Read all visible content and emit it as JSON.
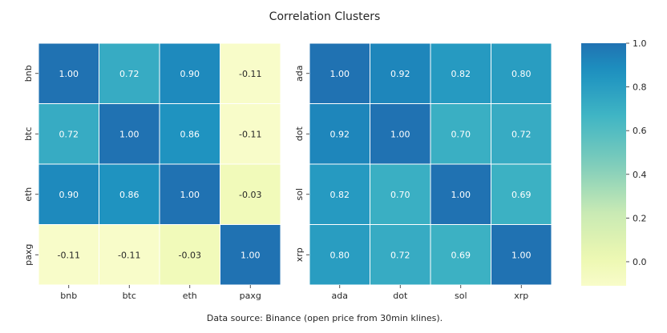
{
  "chart_data": {
    "type": "heatmap",
    "title": "Correlation Clusters",
    "footnote": "Data source: Binance (open price from 30min klines).",
    "colormap": "YlGnBu",
    "vmin": -0.11,
    "vmax": 1.0,
    "colorbar_ticks": [
      "0.0",
      "0.2",
      "0.4",
      "0.6",
      "0.8",
      "1.0"
    ],
    "colorbar_tick_values": [
      0.0,
      0.2,
      0.4,
      0.6,
      0.8,
      1.0
    ],
    "panels": [
      {
        "labels": [
          "bnb",
          "btc",
          "eth",
          "paxg"
        ],
        "values": [
          [
            "1.00",
            "0.72",
            "0.90",
            "-0.11"
          ],
          [
            "0.72",
            "1.00",
            "0.86",
            "-0.11"
          ],
          [
            "0.90",
            "0.86",
            "1.00",
            "-0.03"
          ],
          [
            "-0.11",
            "-0.11",
            "-0.03",
            "1.00"
          ]
        ]
      },
      {
        "labels": [
          "ada",
          "dot",
          "sol",
          "xrp"
        ],
        "values": [
          [
            "1.00",
            "0.92",
            "0.82",
            "0.80"
          ],
          [
            "0.92",
            "1.00",
            "0.70",
            "0.72"
          ],
          [
            "0.82",
            "0.70",
            "1.00",
            "0.69"
          ],
          [
            "0.80",
            "0.72",
            "0.69",
            "1.00"
          ]
        ]
      }
    ]
  }
}
